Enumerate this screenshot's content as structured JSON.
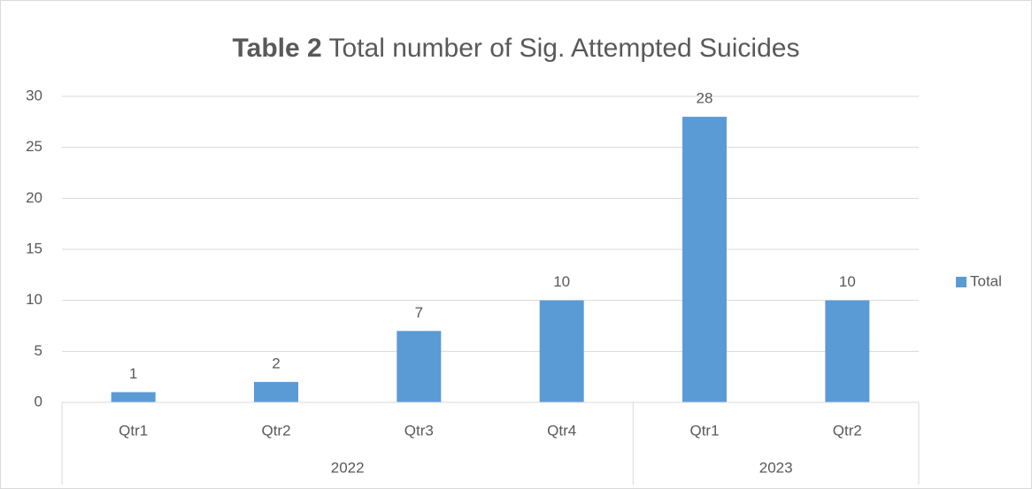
{
  "chart_data": {
    "type": "bar",
    "title_label": "Table 2",
    "title": "Total number of Sig. Attempted Suicides",
    "categories": [
      "Qtr1",
      "Qtr2",
      "Qtr3",
      "Qtr4",
      "Qtr1",
      "Qtr2"
    ],
    "category_groups": [
      {
        "label": "2022",
        "size": 4
      },
      {
        "label": "2023",
        "size": 2
      }
    ],
    "series": [
      {
        "name": "Total",
        "color": "#5b9bd5",
        "values": [
          1,
          2,
          7,
          10,
          28,
          10
        ]
      }
    ],
    "ylim": [
      0,
      30
    ],
    "yticks": [
      0,
      5,
      10,
      15,
      20,
      25,
      30
    ],
    "grid": true,
    "legend": "right"
  }
}
